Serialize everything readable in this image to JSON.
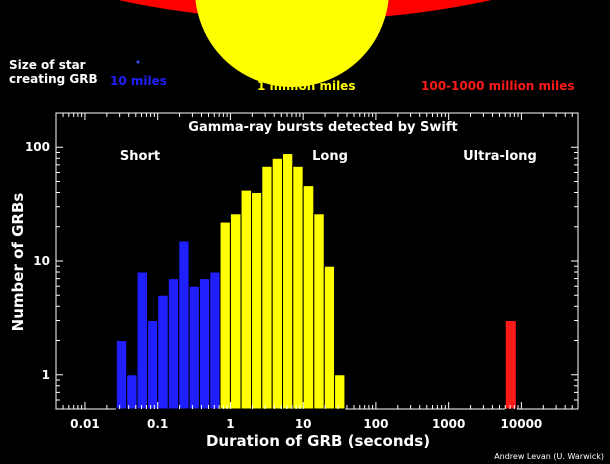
{
  "header": {
    "size_label_line1": "Size of star",
    "size_label_line2": "creating GRB",
    "small_size": "10 miles",
    "medium_size": "1 million miles",
    "large_size": "100-1000 million miles",
    "colors": {
      "small": "#2020ff",
      "medium": "#ffff00",
      "large": "#ff1a1a"
    }
  },
  "credit": "Andrew Levan (U. Warwick)",
  "chart_data": {
    "type": "bar",
    "title": "Gamma-ray bursts detected by Swift",
    "xlabel": "Duration of GRB (seconds)",
    "ylabel": "Number of GRBs",
    "xscale": "log",
    "yscale": "log",
    "xlim": [
      0.004,
      60000
    ],
    "ylim": [
      0.5,
      200
    ],
    "x_ticks": [
      {
        "value": 0.01,
        "label": "0.01"
      },
      {
        "value": 0.1,
        "label": "0.1"
      },
      {
        "value": 1,
        "label": "1"
      },
      {
        "value": 10,
        "label": "10"
      },
      {
        "value": 100,
        "label": "100"
      },
      {
        "value": 1000,
        "label": "1000"
      },
      {
        "value": 10000,
        "label": "10000"
      }
    ],
    "y_ticks": [
      {
        "value": 1,
        "label": "1"
      },
      {
        "value": 10,
        "label": "10"
      },
      {
        "value": 100,
        "label": "100"
      }
    ],
    "annotations": [
      "Short",
      "Long",
      "Ultra-long"
    ],
    "series": [
      {
        "name": "Short",
        "color": "#1f1fff",
        "bins": [
          {
            "x0": 0.027,
            "x1": 0.0375,
            "value": 2
          },
          {
            "x0": 0.0375,
            "x1": 0.052,
            "value": 1
          },
          {
            "x0": 0.052,
            "x1": 0.0725,
            "value": 8
          },
          {
            "x0": 0.0725,
            "x1": 0.1,
            "value": 3
          },
          {
            "x0": 0.1,
            "x1": 0.14,
            "value": 5
          },
          {
            "x0": 0.14,
            "x1": 0.195,
            "value": 7
          },
          {
            "x0": 0.195,
            "x1": 0.27,
            "value": 15
          },
          {
            "x0": 0.27,
            "x1": 0.375,
            "value": 6
          },
          {
            "x0": 0.375,
            "x1": 0.52,
            "value": 7
          },
          {
            "x0": 0.52,
            "x1": 0.72,
            "value": 8
          }
        ]
      },
      {
        "name": "Long",
        "color": "#ffff00",
        "bins": [
          {
            "x0": 0.72,
            "x1": 1.0,
            "value": 22
          },
          {
            "x0": 1.0,
            "x1": 1.4,
            "value": 26
          },
          {
            "x0": 1.4,
            "x1": 1.95,
            "value": 42
          },
          {
            "x0": 1.95,
            "x1": 2.7,
            "value": 40
          },
          {
            "x0": 2.7,
            "x1": 3.75,
            "value": 68
          },
          {
            "x0": 3.75,
            "x1": 5.2,
            "value": 80
          },
          {
            "x0": 5.2,
            "x1": 7.2,
            "value": 88
          },
          {
            "x0": 7.2,
            "x1": 10.0,
            "value": 68
          },
          {
            "x0": 10.0,
            "x1": 14.0,
            "value": 46
          },
          {
            "x0": 14.0,
            "x1": 19.5,
            "value": 26
          },
          {
            "x0": 19.5,
            "x1": 27,
            "value": 9
          },
          {
            "x0": 27,
            "x1": 37.5,
            "value": 1
          }
        ]
      },
      {
        "name": "Ultra-long",
        "color": "#ff1a1a",
        "bins": [
          {
            "x0": 6000,
            "x1": 8500,
            "value": 3
          }
        ]
      }
    ],
    "background": "#000000",
    "axis_color": "#ffffff"
  }
}
